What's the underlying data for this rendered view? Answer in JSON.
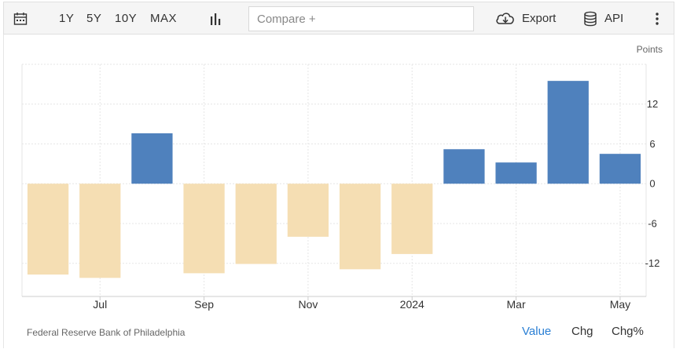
{
  "toolbar": {
    "ranges": [
      "1Y",
      "5Y",
      "10Y",
      "MAX"
    ],
    "compare_placeholder": "Compare +",
    "export_label": "Export",
    "api_label": "API"
  },
  "colors": {
    "positive": "#4f81bd",
    "negative": "#f5deb3",
    "accent": "#2a7fd4"
  },
  "footer": {
    "source": "Federal Reserve Bank of Philadelphia",
    "tabs": [
      "Value",
      "Chg",
      "Chg%"
    ],
    "active_tab": "Value"
  },
  "chart_data": {
    "type": "bar",
    "ylabel": "Points",
    "categories": [
      "2023-06",
      "2023-07",
      "2023-08",
      "2023-09",
      "2023-10",
      "2023-11",
      "2023-12",
      "2024-01",
      "2024-02",
      "2024-03",
      "2024-04",
      "2024-05"
    ],
    "values": [
      -13.7,
      -14.2,
      7.6,
      -13.5,
      -12.1,
      -8.0,
      -12.9,
      -10.6,
      5.2,
      3.2,
      15.5,
      4.5
    ],
    "x_tick_labels": [
      {
        "category": "2023-07",
        "label": "Jul"
      },
      {
        "category": "2023-09",
        "label": "Sep"
      },
      {
        "category": "2023-11",
        "label": "Nov"
      },
      {
        "category": "2024-01",
        "label": "2024"
      },
      {
        "category": "2024-03",
        "label": "Mar"
      },
      {
        "category": "2024-05",
        "label": "May"
      }
    ],
    "yticks": [
      12,
      6,
      0,
      -6,
      -12
    ],
    "ylim": [
      -17,
      18
    ],
    "y_axis_side": "right",
    "grid": true,
    "legend": false
  }
}
